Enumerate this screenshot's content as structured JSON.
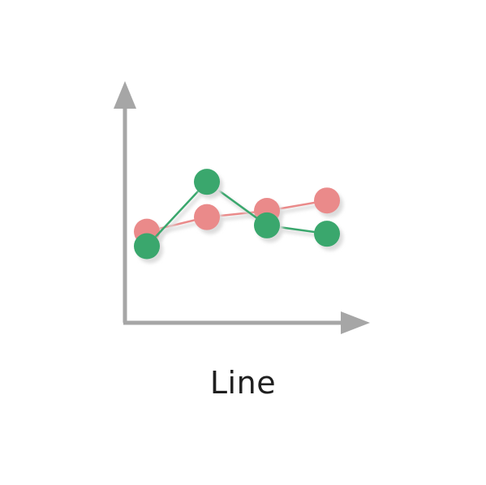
{
  "tile": {
    "label": "Line",
    "icon": "line-chart-icon"
  },
  "colors": {
    "axis": "#a6a6a6",
    "series_pink": "#ea8a8a",
    "series_green": "#3aa76d",
    "shadow": "#dcdcdc",
    "label": "#1f1f1f"
  },
  "chart_data": {
    "type": "line",
    "title": "",
    "xlabel": "",
    "ylabel": "",
    "x": [
      1,
      2,
      3,
      4
    ],
    "ylim": [
      0,
      10
    ],
    "grid": false,
    "series": [
      {
        "values": [
          4.0,
          4.7,
          5.0,
          5.5
        ],
        "color": "#ea8a8a"
      },
      {
        "values": [
          3.3,
          6.4,
          4.3,
          3.9
        ],
        "color": "#3aa76d"
      }
    ]
  }
}
